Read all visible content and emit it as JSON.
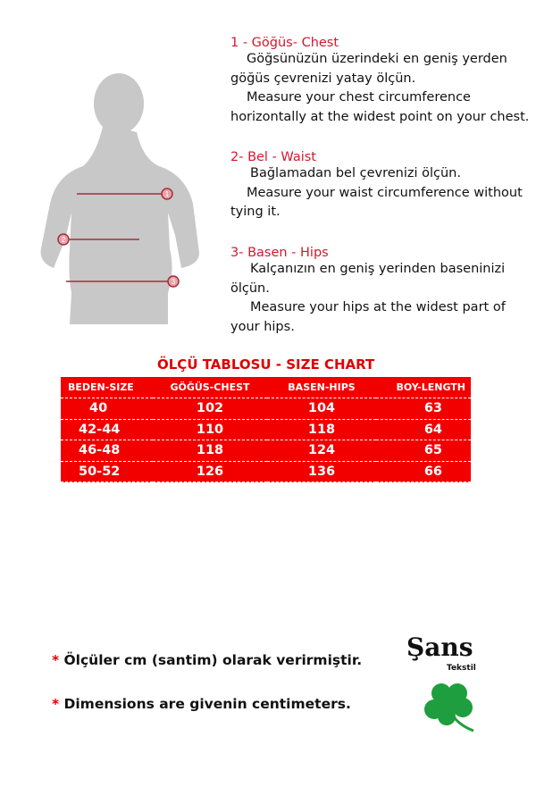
{
  "sections": [
    {
      "title": "1 - Göğüs- Chest",
      "lines": [
        "Göğsünüzün üzerindeki en geniş yerden",
        "göğüs çevrenizi yatay ölçün.",
        "Measure your chest circumference",
        "horizontally at the widest point on your chest."
      ]
    },
    {
      "title": "2- Bel - Waist",
      "lines": [
        "Bağlamadan bel çevrenizi ölçün.",
        "Measure your waist circumference without",
        "tying it."
      ]
    },
    {
      "title": "3- Basen - Hips",
      "lines": [
        "Kalçanızın en geniş yerinden baseninizi",
        "ölçün.",
        "Measure your hips at the widest part of",
        "your hips."
      ]
    }
  ],
  "figure": {
    "markers": [
      "1",
      "2",
      "3"
    ]
  },
  "chart": {
    "title": "ÖLÇÜ TABLOSU - SIZE CHART",
    "headers": [
      "BEDEN-SIZE",
      "GÖĞÜS-CHEST",
      "BASEN-HIPS",
      "BOY-LENGTH"
    ],
    "rows": [
      [
        "40",
        "102",
        "104",
        "63"
      ],
      [
        "42-44",
        "110",
        "118",
        "64"
      ],
      [
        "46-48",
        "118",
        "124",
        "65"
      ],
      [
        "50-52",
        "126",
        "136",
        "66"
      ]
    ]
  },
  "notes": [
    {
      "star": "*",
      "text": " Ölçüler  cm (santim) olarak verirmiştir."
    },
    {
      "star": "*",
      "text": " Dimensions are givenin centimeters."
    }
  ],
  "logo": {
    "name": "Şans",
    "sub": "Tekstil",
    "icon": "clover-icon"
  },
  "colors": {
    "accent": "#d3182c",
    "table": "#f20000",
    "clover": "#1e9e3e"
  }
}
